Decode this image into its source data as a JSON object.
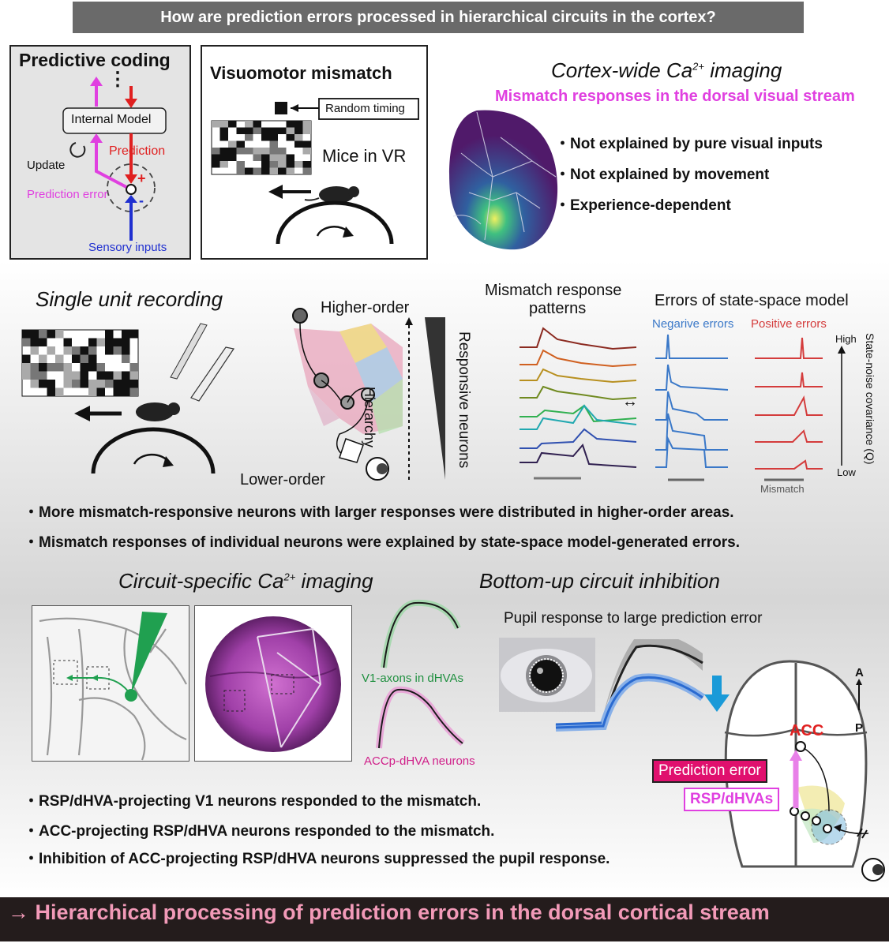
{
  "title": "How are prediction errors processed in hierarchical circuits in the cortex?",
  "predictive_coding": {
    "heading": "Predictive coding",
    "internal_model": "Internal Model",
    "prediction": "Prediction",
    "plus": "+",
    "update": "Update",
    "prediction_error": "Prediction error",
    "minus": "-",
    "sensory_inputs": "Sensory inputs",
    "dots": "⋮"
  },
  "visuomotor": {
    "heading": "Visuomotor mismatch",
    "random_timing": "Random timing",
    "mice_in_vr": "Mice in VR"
  },
  "cortex_wide": {
    "heading_pre": "Cortex-wide Ca",
    "heading_sup": "2+",
    "heading_post": " imaging",
    "subtitle": "Mismatch responses in the dorsal visual stream",
    "bullets": [
      "・Not explained by pure visual inputs",
      "・Not explained by movement",
      "・Experience-dependent"
    ]
  },
  "single_unit": {
    "heading": "Single unit recording",
    "higher_order": "Higher-order",
    "lower_order": "Lower-order",
    "hierarchy": "Hierarchy",
    "responsive_neurons": "Responsive neurons"
  },
  "mismatch_patterns": {
    "heading_line1": "Mismatch response",
    "heading_line2": "patterns",
    "arrow": "↔"
  },
  "state_space": {
    "heading": "Errors of state-space model",
    "negative": "Negarive errors",
    "positive": "Positive errors",
    "high": "High",
    "low": "Low",
    "mismatch": "Mismatch",
    "axis_label": "State-noise covariance (Q)"
  },
  "middle_bullets": [
    "・More mismatch-responsive neurons with larger responses were distributed in higher-order areas.",
    "・Mismatch responses of individual neurons were explained by state-space model-generated errors."
  ],
  "circuit": {
    "heading_pre": "Circuit-specific Ca",
    "heading_sup": "2+",
    "heading_post": " imaging",
    "v1_axons": "V1-axons in dHVAs",
    "accp": "ACCp-dHVA neurons"
  },
  "bottom_up": {
    "heading": "Bottom-up circuit inhibition",
    "pupil": "Pupil response to large prediction error",
    "acc": "ACC",
    "prediction_error": "Prediction error",
    "rsp": "RSP/dHVAs",
    "a": "A",
    "p": "P"
  },
  "lower_bullets": [
    "・RSP/dHVA-projecting V1 neurons responded to the mismatch.",
    "・ACC-projecting RSP/dHVA neurons responded to the mismatch.",
    "・Inhibition of ACC-projecting RSP/dHVA neurons suppressed the pupil response."
  ],
  "conclusion": "→ Hierarchical processing of prediction errors in the dorsal cortical stream",
  "colors": {
    "magenta": "#e040e0",
    "red": "#e02020",
    "blue": "#2030d0",
    "pink_bar": "#e0106e",
    "traces_blue": "#3a78c8",
    "traces_red": "#d43c3c"
  }
}
